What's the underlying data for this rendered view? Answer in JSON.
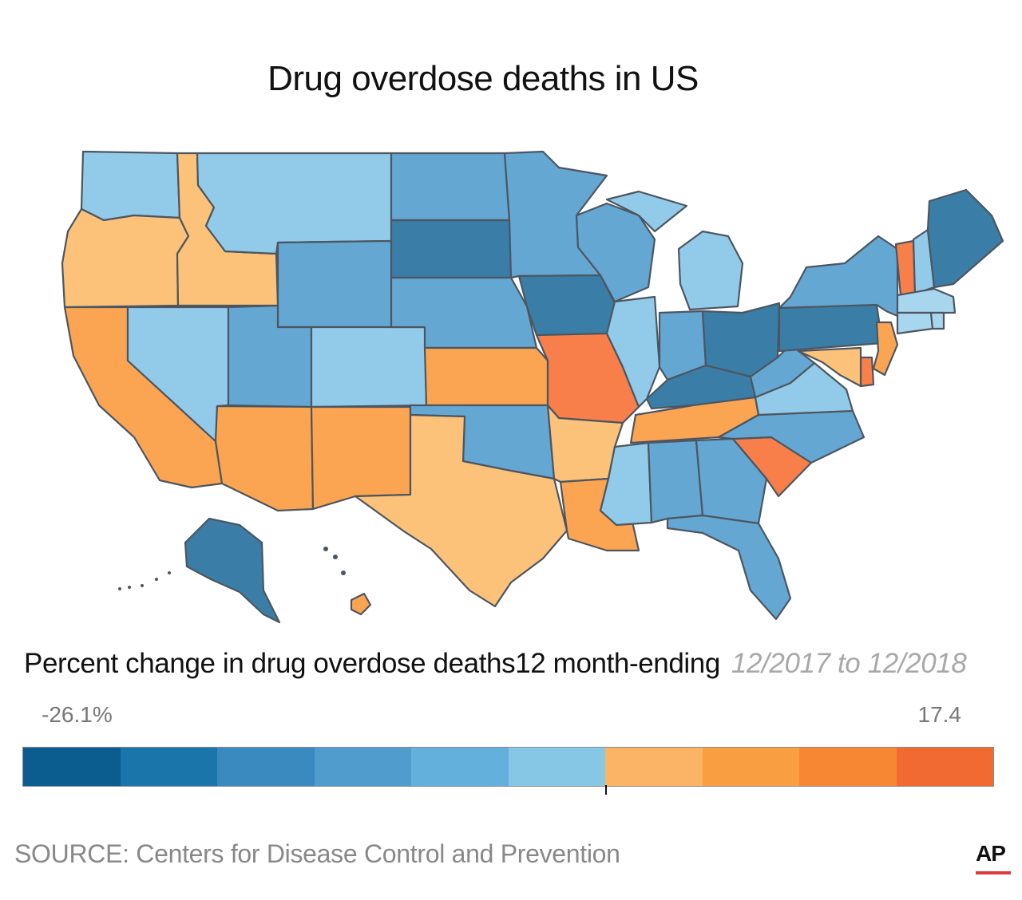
{
  "title": "Drug overdose deaths in US",
  "legend": {
    "subtitle": "Percent change in drug overdose deaths12 month-ending",
    "period": "12/2017 to 12/2018",
    "min_label": "-26.1%",
    "max_label": "17.4",
    "bins": [
      "#0b5c8f",
      "#1a76aa",
      "#3a8ac0",
      "#4f9ccd",
      "#63b0dc",
      "#86c7e6",
      "#fbb366",
      "#f99f42",
      "#f78733",
      "#f06a32"
    ]
  },
  "source": "SOURCE: Centers for Disease Control and Prevention",
  "logo": "AP",
  "colors": {
    "dark_blue": "#3a7ea7",
    "mid_blue": "#64a7d3",
    "light_blue": "#92cbe9",
    "light_orange": "#fdc27a",
    "mid_orange": "#fba552",
    "dark_orange": "#f87f4a",
    "pale_blue": "#a9d6ef"
  },
  "states": [
    {
      "name": "Washington",
      "color": "light_blue"
    },
    {
      "name": "Oregon",
      "color": "light_orange"
    },
    {
      "name": "California",
      "color": "mid_orange"
    },
    {
      "name": "Idaho",
      "color": "light_orange"
    },
    {
      "name": "Nevada",
      "color": "light_blue"
    },
    {
      "name": "Montana",
      "color": "light_blue"
    },
    {
      "name": "Wyoming",
      "color": "mid_blue"
    },
    {
      "name": "Utah",
      "color": "mid_blue"
    },
    {
      "name": "Arizona",
      "color": "mid_orange"
    },
    {
      "name": "Colorado",
      "color": "light_blue"
    },
    {
      "name": "New Mexico",
      "color": "mid_orange"
    },
    {
      "name": "North Dakota",
      "color": "mid_blue"
    },
    {
      "name": "South Dakota",
      "color": "dark_blue"
    },
    {
      "name": "Nebraska",
      "color": "mid_blue"
    },
    {
      "name": "Kansas",
      "color": "mid_orange"
    },
    {
      "name": "Oklahoma",
      "color": "mid_blue"
    },
    {
      "name": "Texas",
      "color": "light_orange"
    },
    {
      "name": "Minnesota",
      "color": "mid_blue"
    },
    {
      "name": "Iowa",
      "color": "dark_blue"
    },
    {
      "name": "Missouri",
      "color": "dark_orange"
    },
    {
      "name": "Arkansas",
      "color": "light_orange"
    },
    {
      "name": "Louisiana",
      "color": "mid_orange"
    },
    {
      "name": "Wisconsin",
      "color": "mid_blue"
    },
    {
      "name": "Illinois",
      "color": "light_blue"
    },
    {
      "name": "Michigan",
      "color": "light_blue"
    },
    {
      "name": "Indiana",
      "color": "mid_blue"
    },
    {
      "name": "Ohio",
      "color": "dark_blue"
    },
    {
      "name": "Kentucky",
      "color": "dark_blue"
    },
    {
      "name": "Tennessee",
      "color": "mid_orange"
    },
    {
      "name": "Mississippi",
      "color": "light_blue"
    },
    {
      "name": "Alabama",
      "color": "mid_blue"
    },
    {
      "name": "Georgia",
      "color": "mid_blue"
    },
    {
      "name": "Florida",
      "color": "mid_blue"
    },
    {
      "name": "South Carolina",
      "color": "dark_orange"
    },
    {
      "name": "North Carolina",
      "color": "mid_blue"
    },
    {
      "name": "Virginia",
      "color": "light_blue"
    },
    {
      "name": "West Virginia",
      "color": "mid_blue"
    },
    {
      "name": "Pennsylvania",
      "color": "dark_blue"
    },
    {
      "name": "New York",
      "color": "mid_blue"
    },
    {
      "name": "Vermont",
      "color": "dark_orange"
    },
    {
      "name": "New Hampshire",
      "color": "light_blue"
    },
    {
      "name": "Maine",
      "color": "dark_blue"
    },
    {
      "name": "Massachusetts",
      "color": "pale_blue"
    },
    {
      "name": "Connecticut",
      "color": "pale_blue"
    },
    {
      "name": "Rhode Island",
      "color": "pale_blue"
    },
    {
      "name": "New Jersey",
      "color": "mid_orange"
    },
    {
      "name": "Delaware",
      "color": "dark_orange"
    },
    {
      "name": "Maryland",
      "color": "light_orange"
    },
    {
      "name": "Alaska",
      "color": "dark_blue"
    },
    {
      "name": "Hawaii",
      "color": "mid_orange"
    }
  ]
}
